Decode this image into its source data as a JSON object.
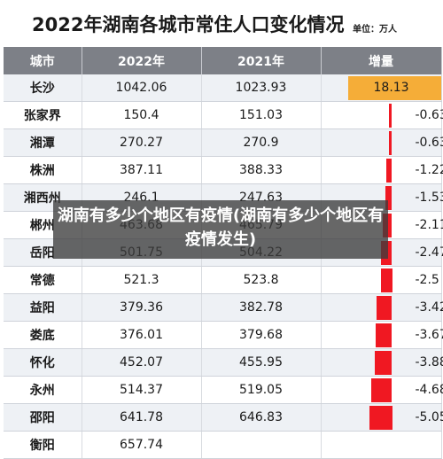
{
  "title": "2022年湖南各城市常住人口变化情况",
  "unit_label": "单位：万人",
  "overlay_caption": "湖南有多少个地区有疫情(湖南有多少个地区有疫情发生)",
  "colors": {
    "header_bg": "#7d8087",
    "positive_bar": "#f5ad38",
    "negative_bar": "#f01822"
  },
  "chart_data": {
    "type": "table",
    "columns": [
      "城市",
      "2022年",
      "2021年",
      "增量"
    ],
    "rows": [
      {
        "city": "长沙",
        "y2022": "1042.06",
        "y2021": "1023.93",
        "change": "18.13",
        "delta": 18.13
      },
      {
        "city": "张家界",
        "y2022": "150.4",
        "y2021": "151.03",
        "change": "-0.63",
        "delta": -0.63
      },
      {
        "city": "湘潭",
        "y2022": "270.27",
        "y2021": "270.9",
        "change": "-0.63",
        "delta": -0.63
      },
      {
        "city": "株洲",
        "y2022": "387.11",
        "y2021": "388.33",
        "change": "-1.22",
        "delta": -1.22
      },
      {
        "city": "湘西州",
        "y2022": "246.1",
        "y2021": "247.63",
        "change": "-1.53",
        "delta": -1.53
      },
      {
        "city": "郴州",
        "y2022": "463.68",
        "y2021": "465.79",
        "change": "-2.11",
        "delta": -2.11
      },
      {
        "city": "岳阳",
        "y2022": "501.75",
        "y2021": "504.22",
        "change": "-2.47",
        "delta": -2.47
      },
      {
        "city": "常德",
        "y2022": "521.3",
        "y2021": "523.8",
        "change": "-2.5",
        "delta": -2.5
      },
      {
        "city": "益阳",
        "y2022": "379.36",
        "y2021": "382.78",
        "change": "-3.42",
        "delta": -3.42
      },
      {
        "city": "娄底",
        "y2022": "376.01",
        "y2021": "379.68",
        "change": "-3.67",
        "delta": -3.67
      },
      {
        "city": "怀化",
        "y2022": "452.07",
        "y2021": "455.95",
        "change": "-3.88",
        "delta": -3.88
      },
      {
        "city": "永州",
        "y2022": "514.37",
        "y2021": "519.05",
        "change": "-4.68",
        "delta": -4.68
      },
      {
        "city": "邵阳",
        "y2022": "641.78",
        "y2021": "646.83",
        "change": "-5.05",
        "delta": -5.05
      },
      {
        "city": "衡阳",
        "y2022": "657.74",
        "y2021": "",
        "change": "",
        "delta": null
      }
    ]
  }
}
